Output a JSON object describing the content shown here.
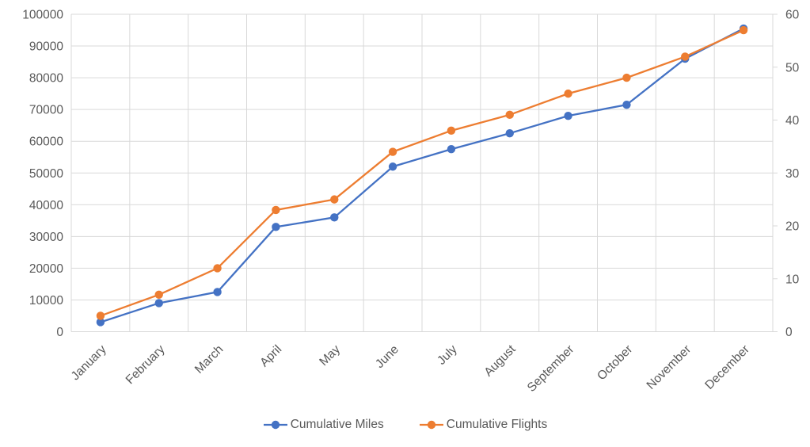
{
  "chart_data": {
    "type": "line",
    "title": "",
    "categories": [
      "January",
      "February",
      "March",
      "April",
      "May",
      "June",
      "July",
      "August",
      "September",
      "October",
      "November",
      "December"
    ],
    "series": [
      {
        "name": "Cumulative Miles",
        "axis": "left",
        "color": "#4472C4",
        "values": [
          3000,
          9000,
          12500,
          33000,
          36000,
          52000,
          57500,
          62500,
          68000,
          71500,
          86000,
          95500
        ]
      },
      {
        "name": "Cumulative Flights",
        "axis": "right",
        "color": "#ED7D31",
        "values": [
          3,
          7,
          12,
          23,
          25,
          34,
          38,
          41,
          45,
          48,
          52,
          57
        ]
      }
    ],
    "left_axis": {
      "min": 0,
      "max": 100000,
      "step": 10000,
      "ticks": [
        0,
        10000,
        20000,
        30000,
        40000,
        50000,
        60000,
        70000,
        80000,
        90000,
        100000
      ]
    },
    "right_axis": {
      "min": 0,
      "max": 60,
      "step": 10,
      "ticks": [
        0,
        10,
        20,
        30,
        40,
        50,
        60
      ]
    },
    "grid": true,
    "legend_position": "bottom",
    "x_label_rotation_deg": -45
  },
  "legend": {
    "items": [
      {
        "label": "Cumulative Miles",
        "color": "#4472C4"
      },
      {
        "label": "Cumulative Flights",
        "color": "#ED7D31"
      }
    ]
  },
  "colors": {
    "gridline": "#D9D9D9",
    "axis_text": "#595959",
    "background": "#FFFFFF"
  }
}
